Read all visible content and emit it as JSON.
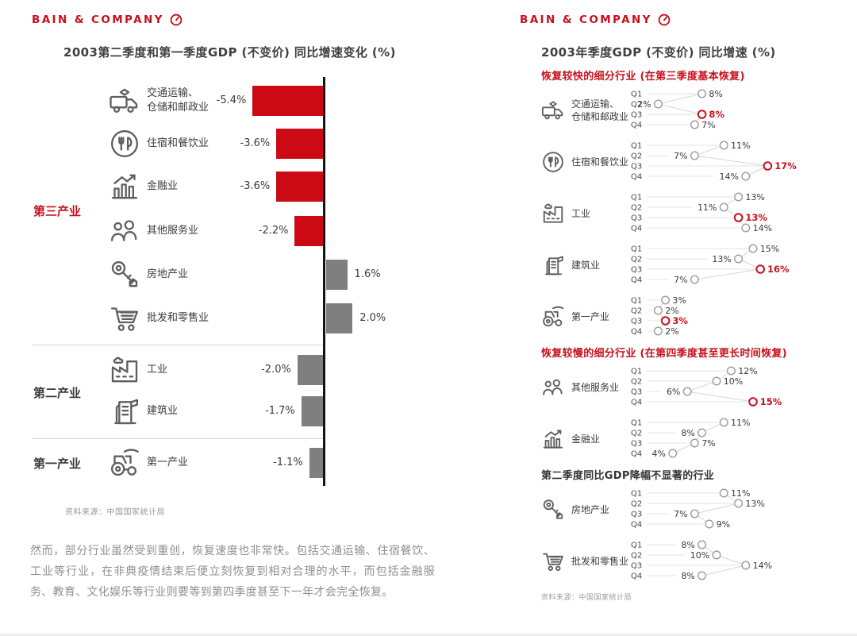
{
  "brand": {
    "logo_text": "BAIN & COMPANY"
  },
  "colors": {
    "red": "#c8101c",
    "bar_red": "#cc0a14",
    "bar_gray": "#7f7f7f",
    "dot_gray": "#9b9b9b",
    "connector_gray": "#d6d6d6",
    "leader_gray": "#e3e3e3",
    "axis_black": "#141414"
  },
  "left_panel": {
    "footnote": "然而，部分行业虽然受到重创，恢复速度也非常快。包括交通运输、住宿餐饮、工业等行业，在非典疫情结束后便立刻恢复到相对合理的水平，而包括金融服务、教育、文化娱乐等行业则要等到第四季度甚至下一年才会完全恢复。"
  },
  "chart_data": [
    {
      "type": "bar",
      "orientation": "horizontal",
      "title": "2003第二季度和第一季度GDP (不变价) 同比增速变化 (%)",
      "unit": "%",
      "source": "资料来源：中国国家统计局",
      "xlim": [
        -6,
        3
      ],
      "groups": [
        {
          "label": "第三产业",
          "label_color": "red",
          "rows": [
            {
              "icon": "transport-icon",
              "category": "交通运输、\n仓储和邮政业",
              "value": -5.4,
              "bar": "red"
            },
            {
              "icon": "dining-icon",
              "category": "住宿和餐饮业",
              "value": -3.6,
              "bar": "red"
            },
            {
              "icon": "finance-icon",
              "category": "金融业",
              "value": -3.6,
              "bar": "red"
            },
            {
              "icon": "services-icon",
              "category": "其他服务业",
              "value": -2.2,
              "bar": "red"
            },
            {
              "icon": "realestate-icon",
              "category": "房地产业",
              "value": 1.6,
              "bar": "gray"
            },
            {
              "icon": "retail-icon",
              "category": "批发和零售业",
              "value": 2.0,
              "bar": "gray"
            }
          ]
        },
        {
          "label": "第二产业",
          "label_color": "dark",
          "rows": [
            {
              "icon": "industry-icon",
              "category": "工业",
              "value": -2.0,
              "bar": "gray"
            },
            {
              "icon": "construction-icon",
              "category": "建筑业",
              "value": -1.7,
              "bar": "gray"
            }
          ]
        },
        {
          "label": "第一产业",
          "label_color": "dark",
          "rows": [
            {
              "icon": "agriculture-icon",
              "category": "第一产业",
              "value": -1.1,
              "bar": "gray"
            }
          ]
        }
      ]
    },
    {
      "type": "scatter",
      "title": "2003年季度GDP (不变价) 同比增速 (%)",
      "unit": "%",
      "source": "资料来源：中国国家统计局",
      "quarters": [
        "Q1",
        "Q2",
        "Q3",
        "Q4"
      ],
      "sections": [
        {
          "heading": "恢复较快的细分行业 (在第三季度基本恢复)",
          "heading_color": "red",
          "industries": [
            {
              "icon": "transport-icon",
              "name": "交通运输、\n仓储和邮政业",
              "values": [
                8,
                2,
                8,
                7
              ],
              "highlight_quarter": "Q3",
              "label_side": [
                "right",
                "left",
                "right",
                "right"
              ]
            },
            {
              "icon": "dining-icon",
              "name": "住宿和餐饮业",
              "values": [
                11,
                7,
                17,
                14
              ],
              "highlight_quarter": "Q3",
              "label_side": [
                "right",
                "left",
                "right",
                "left"
              ]
            },
            {
              "icon": "industry-icon",
              "name": "工业",
              "values": [
                13,
                11,
                13,
                14
              ],
              "highlight_quarter": "Q3",
              "label_side": [
                "right",
                "left",
                "right",
                "right"
              ]
            },
            {
              "icon": "construction-icon",
              "name": "建筑业",
              "values": [
                15,
                13,
                16,
                7
              ],
              "highlight_quarter": "Q3",
              "label_side": [
                "right",
                "left",
                "right",
                "left"
              ]
            },
            {
              "icon": "agriculture-icon",
              "name": "第一产业",
              "values": [
                3,
                2,
                3,
                2
              ],
              "highlight_quarter": "Q3",
              "label_side": [
                "right",
                "right",
                "right",
                "right"
              ]
            }
          ]
        },
        {
          "heading": "恢复较慢的细分行业 (在第四季度甚至更长时间恢复)",
          "heading_color": "red",
          "industries": [
            {
              "icon": "services-icon",
              "name": "其他服务业",
              "values": [
                12,
                10,
                6,
                15
              ],
              "highlight_quarter": "Q4",
              "label_side": [
                "right",
                "right",
                "left",
                "right"
              ]
            },
            {
              "icon": "finance-icon",
              "name": "金融业",
              "values": [
                11,
                8,
                7,
                4
              ],
              "highlight_quarter": null,
              "label_side": [
                "right",
                "left",
                "right",
                "left"
              ]
            }
          ]
        },
        {
          "heading": "第二季度同比GDP降幅不显著的行业",
          "heading_color": "dark",
          "industries": [
            {
              "icon": "realestate-icon",
              "name": "房地产业",
              "values": [
                11,
                13,
                7,
                9
              ],
              "highlight_quarter": null,
              "label_side": [
                "right",
                "right",
                "left",
                "right"
              ]
            },
            {
              "icon": "retail-icon",
              "name": "批发和零售业",
              "values": [
                8,
                10,
                14,
                8
              ],
              "highlight_quarter": null,
              "label_side": [
                "left",
                "left",
                "right",
                "left"
              ]
            }
          ]
        }
      ]
    }
  ]
}
